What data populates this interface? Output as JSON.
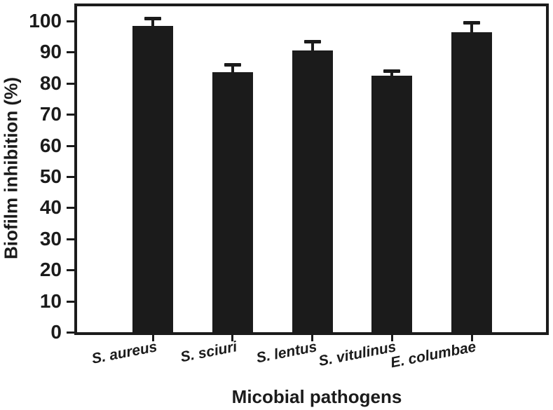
{
  "figure": {
    "background": "#ffffff",
    "ink_color": "#1b1b1b"
  },
  "chart_data": {
    "type": "bar",
    "title": "",
    "xlabel": "Micobial pathogens",
    "ylabel": "Biofilm inhibition (%)",
    "categories": [
      "S. aureus",
      "S. sciuri",
      "S. lentus",
      "S. vitulinus",
      "E. columbae"
    ],
    "values": [
      98.5,
      83.5,
      90.5,
      82.5,
      96.5
    ],
    "errors_plus": [
      2.5,
      2.5,
      3,
      1.5,
      3
    ],
    "ylim": [
      0,
      100
    ],
    "yticks": [
      0,
      10,
      20,
      30,
      40,
      50,
      60,
      70,
      80,
      90,
      100
    ],
    "bar_color": "#1b1b1b",
    "error_bar_color": "#1b1b1b",
    "grid": false,
    "legend": null,
    "category_label_style": "bold-italic-rotated",
    "frame": "full-box"
  }
}
